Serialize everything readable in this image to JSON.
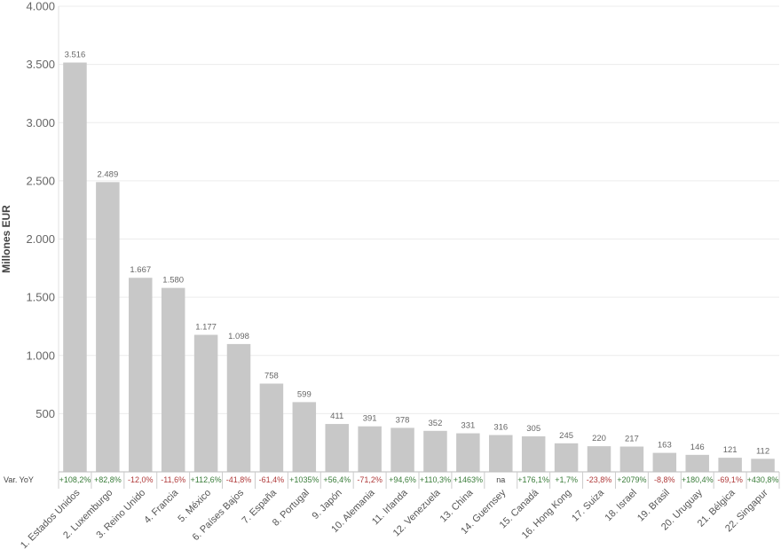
{
  "chart_data": {
    "type": "bar",
    "ylabel": "Millones EUR",
    "ylim": [
      0,
      4000
    ],
    "yticks": [
      500,
      1000,
      1500,
      2000,
      2500,
      3000,
      3500,
      4000
    ],
    "ytick_labels": [
      "500",
      "1.000",
      "1.500",
      "2.000",
      "2.500",
      "3.000",
      "3.500",
      "4.000"
    ],
    "grid": true,
    "bar_color": "#c8c8c8",
    "categories": [
      "1. Estados Unidos",
      "2. Luxemburgo",
      "3. Reino Unido",
      "4. Francia",
      "5. México",
      "6. Países Bajos",
      "7. España",
      "8. Portugal",
      "9. Japón",
      "10. Alemania",
      "11. Irlanda",
      "12. Venezuela",
      "13. China",
      "14. Guernsey",
      "15. Canadá",
      "16. Hong Kong",
      "17. Suiza",
      "18. Israel",
      "19. Brasil",
      "20. Uruguay",
      "21. Bélgica",
      "22. Singapur"
    ],
    "values": [
      3516,
      2489,
      1667,
      1580,
      1177,
      1098,
      758,
      599,
      411,
      391,
      378,
      352,
      331,
      316,
      305,
      245,
      220,
      217,
      163,
      146,
      121,
      112
    ],
    "value_labels": [
      "3.516",
      "2.489",
      "1.667",
      "1.580",
      "1.177",
      "1.098",
      "758",
      "599",
      "411",
      "391",
      "378",
      "352",
      "331",
      "316",
      "305",
      "245",
      "220",
      "217",
      "163",
      "146",
      "121",
      "112"
    ],
    "yoy_label": "Var. YoY",
    "yoy": [
      "+108,2%",
      "+82,8%",
      "-12,0%",
      "-11,6%",
      "+112,6%",
      "-41,8%",
      "-61,4%",
      "+1035%",
      "+56,4%",
      "-71,2%",
      "+94,6%",
      "+110,3%",
      "+1463%",
      "na",
      "+176,1%",
      "+1,7%",
      "-23,8%",
      "+2079%",
      "-8,8%",
      "+180,4%",
      "-69,1%",
      "+430,8%"
    ],
    "colors": {
      "positive": "#3a7d3a",
      "negative": "#b03a3a",
      "neutral": "#444444"
    }
  }
}
